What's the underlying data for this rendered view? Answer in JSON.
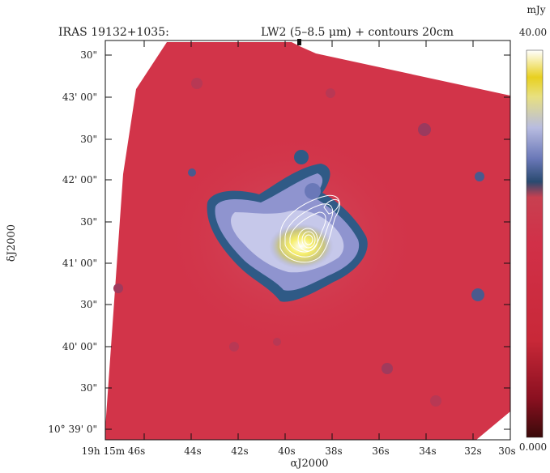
{
  "title": {
    "source": "IRAS 19132+1035:",
    "band": "LW2 (5–8.5 μm) + contours 20cm"
  },
  "colorbar": {
    "unit": "mJy",
    "max_label": "40.00",
    "min_label": "0.000",
    "colors": [
      "#3a0a0a",
      "#8a1020",
      "#c82838",
      "#d13048",
      "#c84050",
      "#2a4a70",
      "#6a78b8",
      "#b8bce0",
      "#e8e080",
      "#e8d020",
      "#ffffff"
    ]
  },
  "axes": {
    "ylabel": "δJ2000",
    "xlabel": "αJ2000",
    "y_ticks": [
      "30\"",
      "43' 00\"",
      "30\"",
      "42' 00\"",
      "30\"",
      "41' 00\"",
      "30\"",
      "40' 00\"",
      "30\"",
      "10° 39' 0\""
    ],
    "x_ticks": [
      "19h 15m 46s",
      "44s",
      "42s",
      "40s",
      "38s",
      "36s",
      "34s",
      "32s",
      "30s"
    ]
  },
  "image": {
    "background_color": "#d23449",
    "emission_colors": [
      "#2f5a86",
      "#8f94cf",
      "#c6c8ea",
      "#f1ea46",
      "#ffffff"
    ],
    "contour_color": "#ffffff"
  }
}
